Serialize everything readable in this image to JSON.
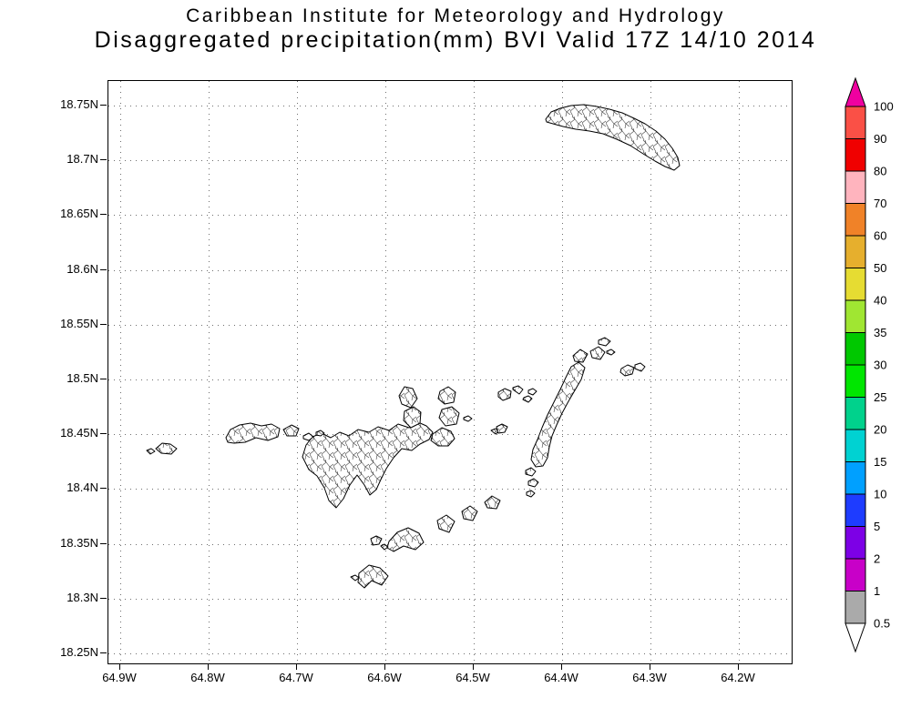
{
  "title": {
    "line1": "Caribbean Institute for Meteorology and Hydrology",
    "line2": "Disaggregated precipitation(mm) BVI Valid 17Z 14/10 2014"
  },
  "map": {
    "y_axis_labels": [
      "18.75N",
      "18.7N",
      "18.65N",
      "18.6N",
      "18.55N",
      "18.5N",
      "18.45N",
      "18.4N",
      "18.35N",
      "18.3N",
      "18.25N"
    ],
    "x_axis_labels": [
      "64.9W",
      "64.8W",
      "64.7W",
      "64.6W",
      "64.5W",
      "64.4W",
      "64.3W",
      "64.2W"
    ],
    "gridline_style": "dotted"
  },
  "colorbar": {
    "units": "mm",
    "tick_labels": [
      "100",
      "90",
      "80",
      "70",
      "60",
      "50",
      "40",
      "35",
      "30",
      "25",
      "20",
      "15",
      "10",
      "5",
      "2",
      "1",
      "0.5"
    ],
    "segments_top_to_bottom": [
      {
        "range": ">100",
        "color": "#f000a0",
        "shape": "arrow-up"
      },
      {
        "range": "90-100",
        "color": "#fa5046"
      },
      {
        "range": "80-90",
        "color": "#f00000"
      },
      {
        "range": "70-80",
        "color": "#ffb4be"
      },
      {
        "range": "60-70",
        "color": "#f08228"
      },
      {
        "range": "50-60",
        "color": "#e6af2d"
      },
      {
        "range": "40-50",
        "color": "#e6dc32"
      },
      {
        "range": "35-40",
        "color": "#a0e632"
      },
      {
        "range": "30-35",
        "color": "#00c800"
      },
      {
        "range": "25-30",
        "color": "#00e600"
      },
      {
        "range": "20-25",
        "color": "#00d28c"
      },
      {
        "range": "15-20",
        "color": "#00d2d2"
      },
      {
        "range": "10-15",
        "color": "#00a0ff"
      },
      {
        "range": "5-10",
        "color": "#1e3cff"
      },
      {
        "range": "2-5",
        "color": "#7d00e6"
      },
      {
        "range": "1-2",
        "color": "#c800c8"
      },
      {
        "range": "0.5-1",
        "color": "#aaaaaa"
      },
      {
        "range": "<0.5",
        "color": "#ffffff",
        "shape": "arrow-down"
      }
    ]
  }
}
